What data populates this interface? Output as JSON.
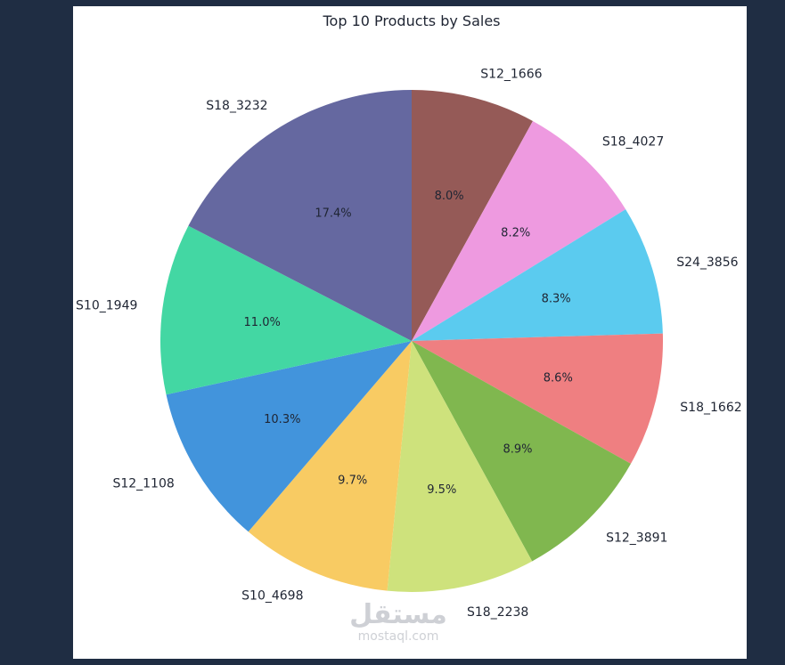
{
  "chart_data": {
    "type": "pie",
    "title": "Top 10 Products by Sales",
    "labels": [
      "S12_1666",
      "S18_4027",
      "S24_3856",
      "S18_1662",
      "S12_3891",
      "S18_2238",
      "S10_4698",
      "S12_1108",
      "S10_1949",
      "S18_3232"
    ],
    "values": [
      8.0,
      8.2,
      8.3,
      8.6,
      8.9,
      9.5,
      9.7,
      10.3,
      11.0,
      17.4
    ],
    "percent_labels": [
      "8.0%",
      "8.2%",
      "8.3%",
      "8.6%",
      "8.9%",
      "9.5%",
      "9.7%",
      "10.3%",
      "11.0%",
      "17.4%"
    ],
    "colors": [
      "#955a57",
      "#ee9ae0",
      "#5bcbef",
      "#ef7f81",
      "#80b74f",
      "#cee27c",
      "#f8cb63",
      "#4294dc",
      "#43d7a3",
      "#6568a0"
    ],
    "start_angle": "top",
    "direction": "clockwise"
  },
  "watermark": {
    "arabic": "مستقل",
    "latin": "mostaql.com"
  }
}
